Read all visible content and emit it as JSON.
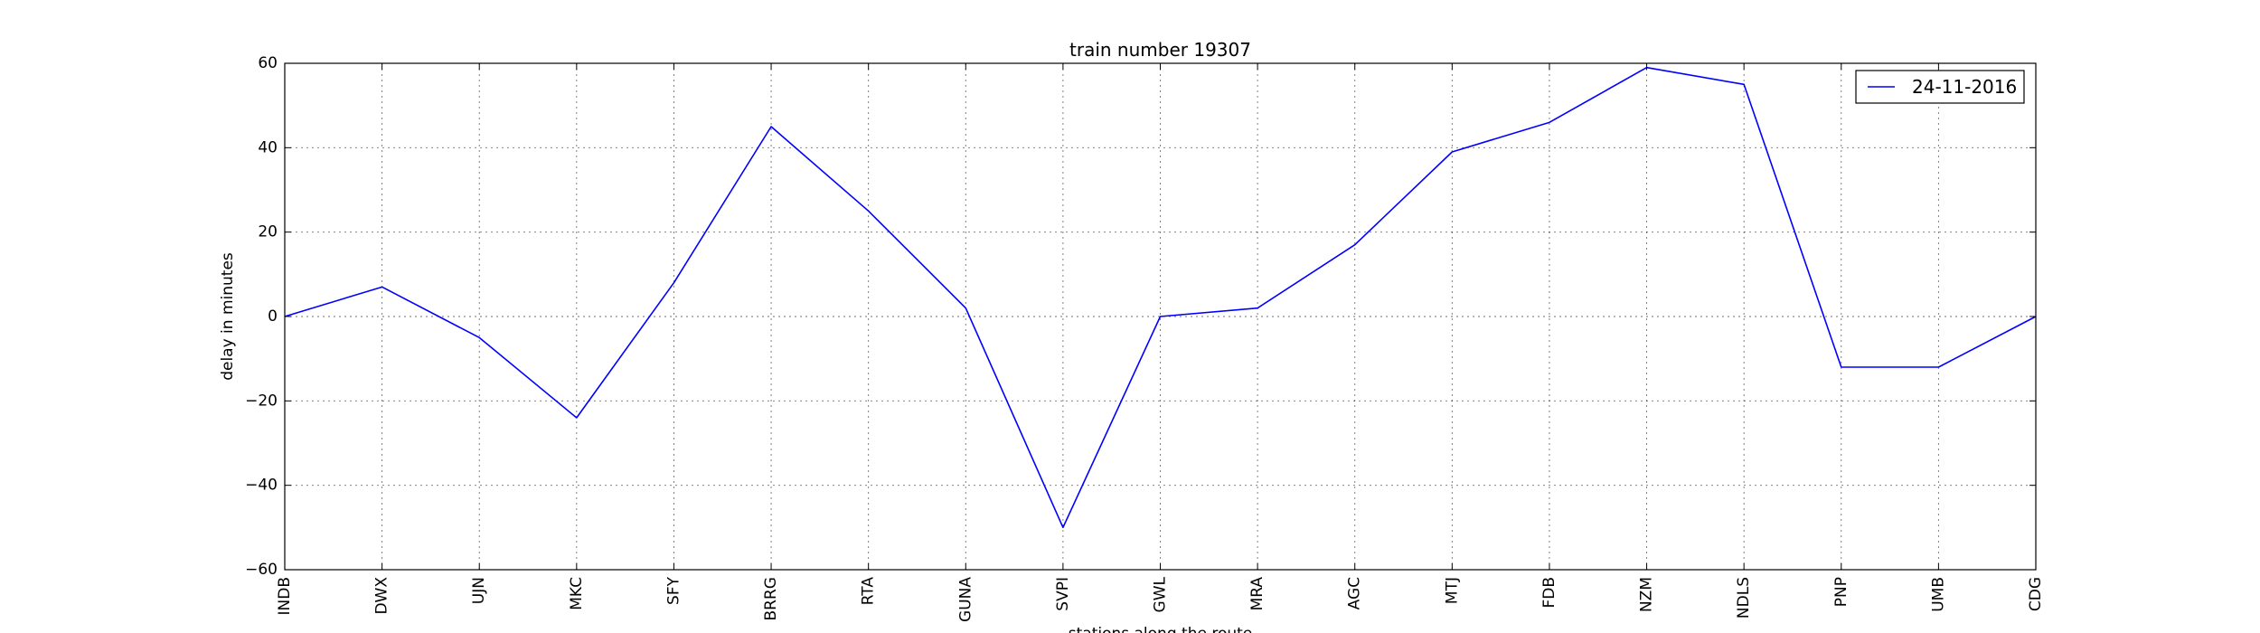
{
  "chart_data": {
    "type": "line",
    "title": "train number 19307",
    "xlabel": "stations along the route",
    "ylabel": "delay in minutes",
    "categories": [
      "INDB",
      "DWX",
      "UJN",
      "MKC",
      "SFY",
      "BRRG",
      "RTA",
      "GUNA",
      "SVPI",
      "GWL",
      "MRA",
      "AGC",
      "MTJ",
      "FDB",
      "NZM",
      "NDLS",
      "PNP",
      "UMB",
      "CDG"
    ],
    "series": [
      {
        "name": "24-11-2016",
        "color": "#0000ff",
        "values": [
          0,
          7,
          -5,
          -24,
          8,
          45,
          25,
          2,
          -50,
          0,
          2,
          17,
          39,
          46,
          59,
          55,
          -12,
          -12,
          0
        ]
      }
    ],
    "ylim": [
      -60,
      60
    ],
    "yticks": [
      -60,
      -40,
      -20,
      0,
      20,
      40,
      60
    ],
    "grid": true,
    "legend_position": "top-right"
  }
}
